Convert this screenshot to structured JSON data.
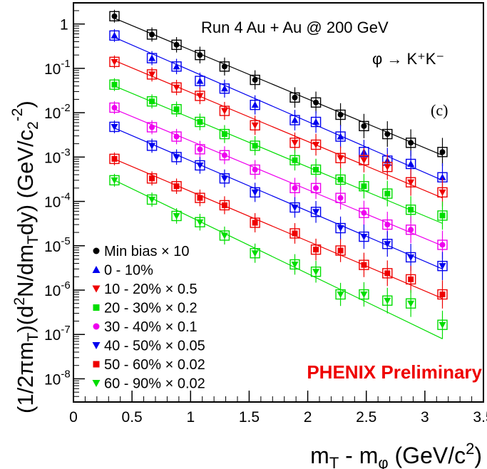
{
  "chart_data": {
    "type": "scatter",
    "title": "Run 4 Au + Au @ 200 GeV",
    "xlabel": "m_T - m_φ (GeV/c²)",
    "xlabel_parts": {
      "m": "m",
      "sub_T": "T",
      "dash": " - m",
      "sub_phi": "φ",
      "unit": " (GeV/c",
      "sup": "2",
      "close": ")"
    },
    "ylabel_parts": {
      "a": "(1/2πm",
      "sub_T": "T",
      "b": ")(d",
      "sup_2": "2",
      "c": "N/dm",
      "sub_T2": "T",
      "d": "dy) (GeV/c",
      "sup_m2": "2",
      "sup_neg": "-2",
      "e": ")"
    },
    "yscale": "log",
    "xlim": [
      0,
      3.5
    ],
    "ylim": [
      3e-09,
      3
    ],
    "xticks": [
      0,
      0.5,
      1,
      1.5,
      2,
      2.5,
      3,
      3.5
    ],
    "xtick_labels": [
      "0",
      "0.5",
      "1",
      "1.5",
      "2",
      "2.5",
      "3",
      "3.5"
    ],
    "ytick_labels": [
      {
        "base": "1",
        "exp": ""
      },
      {
        "base": "10",
        "exp": "-1"
      },
      {
        "base": "10",
        "exp": "-2"
      },
      {
        "base": "10",
        "exp": "-3"
      },
      {
        "base": "10",
        "exp": "-4"
      },
      {
        "base": "10",
        "exp": "-5"
      },
      {
        "base": "10",
        "exp": "-6"
      },
      {
        "base": "10",
        "exp": "-7"
      },
      {
        "base": "10",
        "exp": "-8"
      }
    ],
    "annotations": {
      "decay": "φ → K⁺K⁻",
      "panel": "(c)",
      "preliminary": "PHENIX Preliminary"
    },
    "x": [
      0.35,
      0.67,
      0.88,
      1.08,
      1.29,
      1.55,
      1.89,
      2.07,
      2.28,
      2.48,
      2.68,
      2.88,
      3.15
    ],
    "series": [
      {
        "name": "Min bias × 10",
        "color": "#000000",
        "marker": "circle",
        "values": [
          1.5,
          0.58,
          0.34,
          0.2,
          0.11,
          0.055,
          0.022,
          0.017,
          0.009,
          0.005,
          0.0033,
          0.0021,
          0.0013
        ],
        "fit": [
          1.35,
          0.0011
        ]
      },
      {
        "name": "0 - 10%",
        "color": "#0000ee",
        "marker": "triangle-up",
        "values": [
          0.55,
          0.17,
          0.11,
          0.052,
          0.035,
          0.015,
          0.0068,
          0.0062,
          0.0029,
          0.0013,
          0.00083,
          0.0007,
          0.00035
        ],
        "fit": [
          0.5,
          0.0003
        ]
      },
      {
        "name": "10 - 20% × 0.5",
        "color": "#ee0000",
        "marker": "triangle-down",
        "values": [
          0.14,
          0.073,
          0.037,
          0.024,
          0.011,
          0.0052,
          0.0021,
          0.0019,
          0.00095,
          0.00085,
          0.0006,
          0.00027,
          0.00016
        ],
        "fit": [
          0.15,
          0.00012
        ]
      },
      {
        "name": "20 - 30% × 0.2",
        "color": "#00dd00",
        "marker": "square",
        "values": [
          0.043,
          0.018,
          0.012,
          0.0062,
          0.0033,
          0.0018,
          0.00085,
          0.00052,
          0.00031,
          0.00022,
          0.00015,
          6.5e-05,
          4.8e-05
        ],
        "fit": [
          0.04,
          3.2e-05
        ]
      },
      {
        "name": "30 - 40% × 0.1",
        "color": "#ee00ee",
        "marker": "circle",
        "values": [
          0.013,
          0.0047,
          0.0029,
          0.0015,
          0.0011,
          0.00052,
          0.0002,
          0.0002,
          0.00012,
          5.5e-05,
          3e-05,
          2.3e-05,
          1.05e-05
        ],
        "fit": [
          0.012,
          1e-05
        ]
      },
      {
        "name": "40 - 50% × 0.05",
        "color": "#0000ee",
        "marker": "triangle-down",
        "values": [
          0.0048,
          0.0018,
          0.001,
          0.00065,
          0.00033,
          0.00016,
          7.3e-05,
          5.8e-05,
          2.5e-05,
          1.6e-05,
          1.1e-05,
          5.5e-06,
          3.5e-06
        ],
        "fit": [
          0.0045,
          3e-06
        ]
      },
      {
        "name": "50 - 60% × 0.02",
        "color": "#ee0000",
        "marker": "square",
        "values": [
          0.00091,
          0.00033,
          0.00022,
          0.00012,
          8.2e-05,
          3.3e-05,
          1.9e-05,
          8.2e-06,
          7.8e-06,
          3.7e-06,
          2.4e-06,
          1.75e-06,
          8e-07
        ],
        "fit": [
          0.0009,
          6.5e-07
        ]
      },
      {
        "name": "60 - 90% × 0.02",
        "color": "#00dd00",
        "marker": "triangle-down",
        "values": [
          0.0003,
          0.00011,
          4.7e-05,
          3.4e-05,
          1.7e-05,
          6.8e-06,
          3.8e-06,
          2.6e-06,
          8e-07,
          8e-07,
          5.8e-07,
          5e-07,
          1.65e-07
        ],
        "fit": [
          0.0003,
          8e-08
        ]
      }
    ]
  }
}
